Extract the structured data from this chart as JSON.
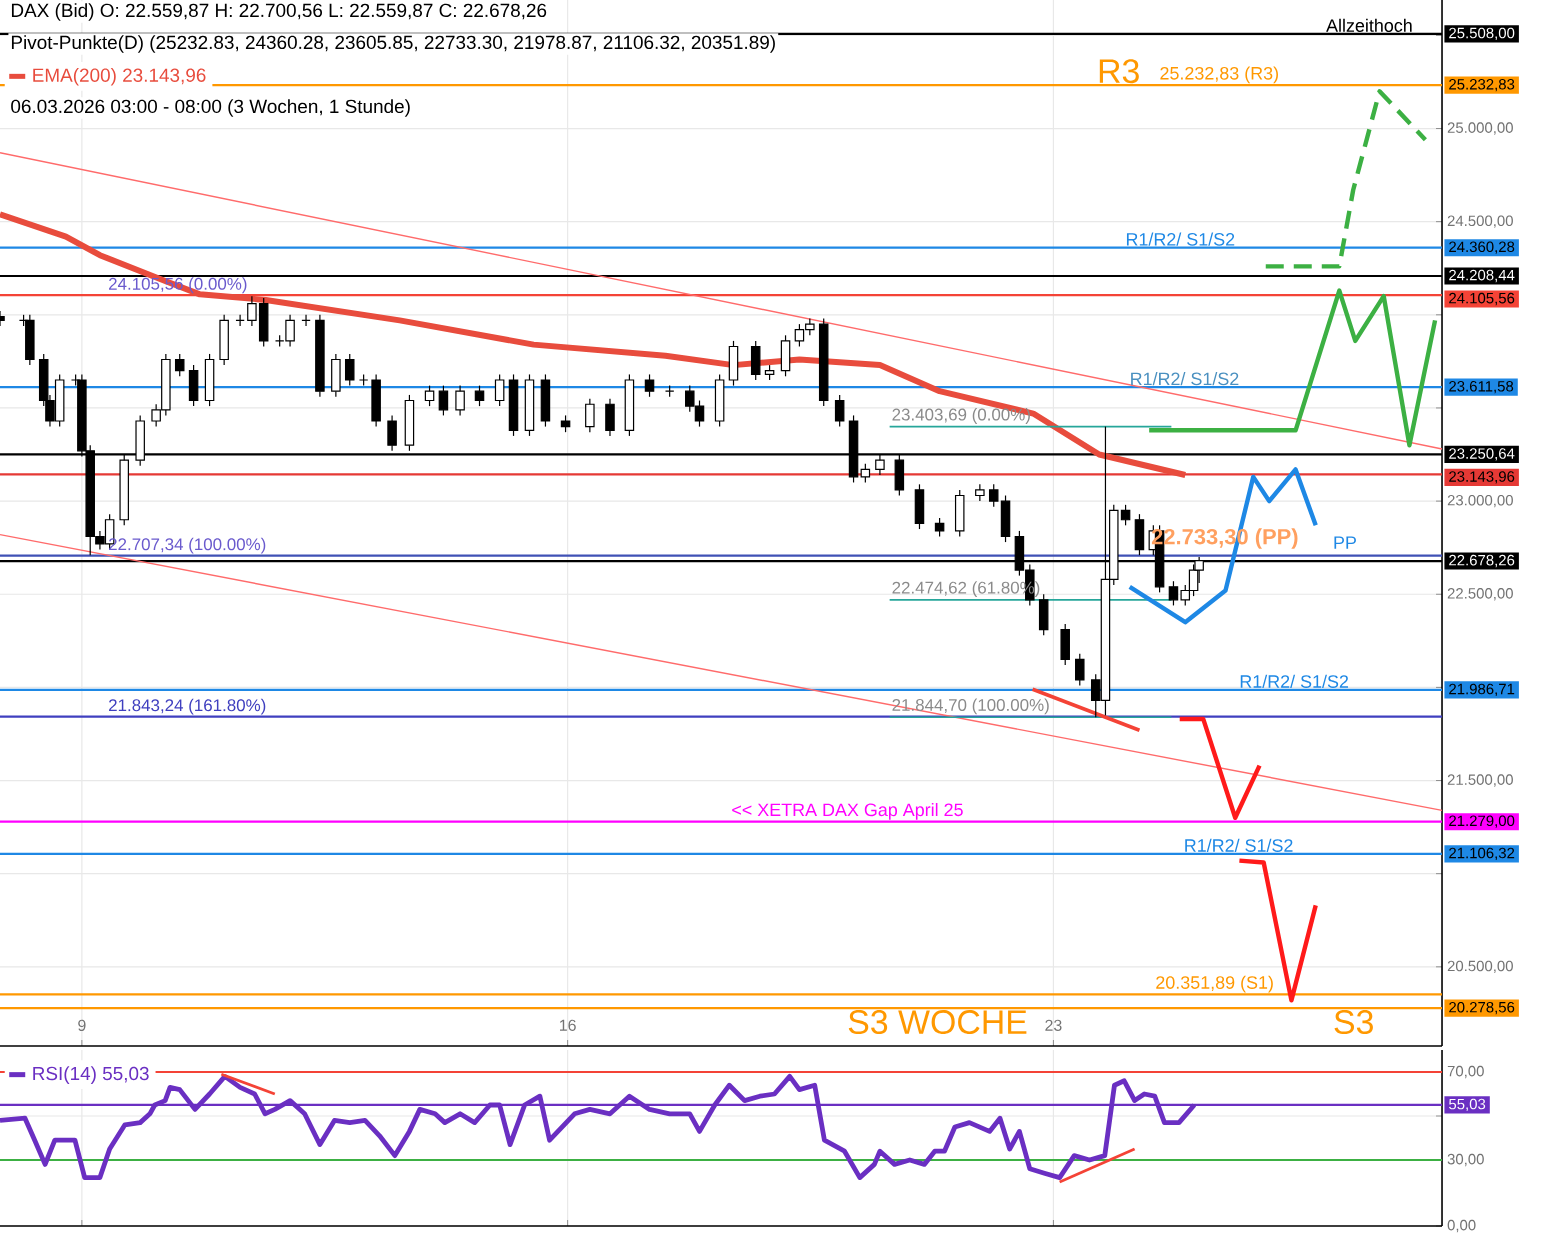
{
  "chart_data": [
    {
      "type": "candlestick",
      "title": "DAX (Bid)  O: 22.559,87  H: 22.700,56  L: 22.559,87  C: 22.678,26",
      "subtitle": "Pivot-Punkte(D)  (25232.83,  24360.28,  23605.85,  22733.30,  21978.87,  21106.32,  20351.89)",
      "color": "#000000",
      "x": [
        7.82,
        8.16,
        8.25,
        8.45,
        8.54,
        8.68,
        8.91,
        9.0,
        9.12,
        9.26,
        9.4,
        9.61,
        9.84,
        10.07,
        10.21,
        10.41,
        10.61,
        10.84,
        11.05,
        11.28,
        11.45,
        11.62,
        11.85,
        12.0,
        12.23,
        12.43,
        12.66,
        12.86,
        13.06,
        13.24,
        13.47,
        13.72,
        14.01,
        14.21,
        14.45,
        14.73,
        15.02,
        15.22,
        15.45,
        15.68,
        15.97,
        16.32,
        16.61,
        16.89,
        17.18,
        17.47,
        17.76,
        17.9,
        18.19,
        18.39,
        18.71,
        18.91,
        19.14,
        19.34,
        19.49,
        19.69,
        19.92,
        20.12,
        20.29,
        20.5,
        20.78,
        21.07,
        21.36,
        21.65,
        21.94,
        22.14,
        22.31,
        22.51,
        22.66,
        22.86,
        23.17,
        23.38,
        23.61,
        23.75,
        23.87,
        24.04,
        24.24,
        24.44,
        24.53,
        24.73,
        24.9,
        25.02,
        25.1
      ],
      "ohlc": [
        [
          23990,
          24020,
          23940,
          23970
        ],
        [
          23970,
          24000,
          23940,
          23970
        ],
        [
          23970,
          24000,
          23730,
          23760
        ],
        [
          23760,
          23790,
          23510,
          23540
        ],
        [
          23540,
          23570,
          23400,
          23430
        ],
        [
          23430,
          23680,
          23400,
          23650
        ],
        [
          23650,
          23680,
          23620,
          23650
        ],
        [
          23650,
          23680,
          23240,
          23270
        ],
        [
          23270,
          23300,
          22710,
          22810
        ],
        [
          22810,
          22840,
          22740,
          22770
        ],
        [
          22770,
          22930,
          22740,
          22900
        ],
        [
          22900,
          23250,
          22870,
          23220
        ],
        [
          23220,
          23460,
          23190,
          23430
        ],
        [
          23430,
          23520,
          23400,
          23490
        ],
        [
          23490,
          23790,
          23460,
          23760
        ],
        [
          23760,
          23790,
          23670,
          23700
        ],
        [
          23700,
          23730,
          23510,
          23540
        ],
        [
          23540,
          23790,
          23510,
          23760
        ],
        [
          23760,
          24000,
          23730,
          23970
        ],
        [
          23970,
          24000,
          23940,
          23970
        ],
        [
          23970,
          24100,
          23940,
          24060
        ],
        [
          24060,
          24090,
          23830,
          23860
        ],
        [
          23860,
          23890,
          23830,
          23860
        ],
        [
          23860,
          24000,
          23830,
          23970
        ],
        [
          23970,
          24000,
          23940,
          23970
        ],
        [
          23970,
          24000,
          23560,
          23590
        ],
        [
          23590,
          23790,
          23560,
          23760
        ],
        [
          23760,
          23790,
          23620,
          23650
        ],
        [
          23650,
          23680,
          23620,
          23650
        ],
        [
          23650,
          23680,
          23400,
          23430
        ],
        [
          23430,
          23460,
          23270,
          23300
        ],
        [
          23300,
          23570,
          23270,
          23540
        ],
        [
          23540,
          23620,
          23510,
          23590
        ],
        [
          23590,
          23620,
          23460,
          23490
        ],
        [
          23490,
          23620,
          23460,
          23590
        ],
        [
          23590,
          23620,
          23510,
          23540
        ],
        [
          23540,
          23680,
          23510,
          23650
        ],
        [
          23650,
          23680,
          23350,
          23380
        ],
        [
          23380,
          23680,
          23350,
          23650
        ],
        [
          23650,
          23680,
          23400,
          23430
        ],
        [
          23430,
          23460,
          23370,
          23400
        ],
        [
          23400,
          23550,
          23370,
          23520
        ],
        [
          23520,
          23550,
          23350,
          23380
        ],
        [
          23380,
          23680,
          23350,
          23650
        ],
        [
          23650,
          23680,
          23560,
          23590
        ],
        [
          23590,
          23620,
          23560,
          23590
        ],
        [
          23590,
          23620,
          23480,
          23510
        ],
        [
          23510,
          23540,
          23400,
          23430
        ],
        [
          23430,
          23680,
          23400,
          23650
        ],
        [
          23650,
          23860,
          23620,
          23830
        ],
        [
          23830,
          23860,
          23650,
          23680
        ],
        [
          23680,
          23730,
          23650,
          23700
        ],
        [
          23700,
          23890,
          23670,
          23860
        ],
        [
          23860,
          23950,
          23830,
          23920
        ],
        [
          23920,
          23980,
          23890,
          23950
        ],
        [
          23950,
          23980,
          23510,
          23540
        ],
        [
          23540,
          23570,
          23400,
          23430
        ],
        [
          23430,
          23460,
          23100,
          23130
        ],
        [
          23130,
          23200,
          23100,
          23170
        ],
        [
          23170,
          23250,
          23140,
          23220
        ],
        [
          23220,
          23250,
          23030,
          23060
        ],
        [
          23060,
          23090,
          22850,
          22880
        ],
        [
          22880,
          22910,
          22810,
          22840
        ],
        [
          22840,
          23060,
          22810,
          23030
        ],
        [
          23030,
          23090,
          23000,
          23060
        ],
        [
          23060,
          23090,
          22970,
          23000
        ],
        [
          23000,
          23030,
          22780,
          22810
        ],
        [
          22810,
          22840,
          22600,
          22630
        ],
        [
          22630,
          22660,
          22440,
          22470
        ],
        [
          22470,
          22500,
          22280,
          22310
        ],
        [
          22310,
          22340,
          22120,
          22150
        ],
        [
          22150,
          22180,
          22010,
          22040
        ],
        [
          22040,
          22070,
          21840,
          21930
        ],
        [
          21930,
          23400,
          21850,
          22580
        ],
        [
          22580,
          22980,
          22550,
          22950
        ],
        [
          22950,
          22980,
          22870,
          22900
        ],
        [
          22900,
          22930,
          22710,
          22740
        ],
        [
          22740,
          22870,
          22710,
          22840
        ],
        [
          22840,
          22870,
          22510,
          22540
        ],
        [
          22540,
          22570,
          22440,
          22470
        ],
        [
          22470,
          22550,
          22440,
          22520
        ],
        [
          22520,
          22660,
          22490,
          22630
        ],
        [
          22630,
          22700,
          22560,
          22680
        ]
      ],
      "series": [
        {
          "name": "EMA(200)  23.143,96",
          "type": "line",
          "color": "#e84c3d",
          "x": [
            7.82,
            8.77,
            9.26,
            10.21,
            10.7,
            11.65,
            13.58,
            15.51,
            17.41,
            18.39,
            19.34,
            20.5,
            21.36,
            22.71,
            23.66,
            24.9
          ],
          "values": [
            24540,
            24420,
            24320,
            24180,
            24110,
            24080,
            23970,
            23840,
            23780,
            23730,
            23760,
            23730,
            23590,
            23470,
            23250,
            23140
          ]
        },
        {
          "type": "line",
          "color": "#ff6b6b",
          "x": [
            7.82,
            28.6
          ],
          "values": [
            24870,
            23280
          ]
        },
        {
          "type": "line",
          "color": "#ff6b6b",
          "x": [
            7.82,
            28.6
          ],
          "values": [
            22820,
            21340
          ]
        },
        {
          "type": "line",
          "color": "#26a69a",
          "x": [
            20.64,
            24.7
          ],
          "values": [
            23400,
            23400
          ]
        },
        {
          "type": "line",
          "color": "#26a69a",
          "x": [
            20.64,
            24.7
          ],
          "values": [
            22470,
            22470
          ]
        },
        {
          "type": "line",
          "color": "#26a69a",
          "x": [
            20.64,
            24.7
          ],
          "values": [
            21840,
            21840
          ]
        },
        {
          "type": "line",
          "color": "#3cb043",
          "x": [
            24.38,
            26.49,
            27.12,
            27.35,
            27.76,
            28.13,
            28.5
          ],
          "values": [
            23380,
            23380,
            24130,
            23860,
            24100,
            23300,
            23970
          ]
        },
        {
          "type": "line",
          "color": "#3cb043",
          "line_style": "dashed",
          "x": [
            26.06,
            27.12,
            27.32,
            27.7,
            28.36
          ],
          "values": [
            24260,
            24260,
            24670,
            25200,
            24940
          ]
        },
        {
          "type": "line",
          "color": "#1e88e5",
          "x": [
            24.1,
            24.9,
            25.48,
            25.88,
            26.11,
            26.49,
            26.78
          ],
          "values": [
            22540,
            22350,
            22520,
            23130,
            23000,
            23170,
            22870
          ]
        },
        {
          "type": "line",
          "color": "#ff1a1a",
          "x": [
            24.82,
            25.16,
            25.62,
            25.97
          ],
          "values": [
            21830,
            21830,
            21300,
            21580
          ]
        },
        {
          "type": "line",
          "color": "#ff1a1a",
          "x": [
            25.68,
            26.03,
            26.43,
            26.78
          ],
          "values": [
            21070,
            21060,
            20320,
            20830
          ]
        },
        {
          "type": "line",
          "color": "#f44336",
          "x": [
            22.7,
            24.24
          ],
          "values": [
            21990,
            21770
          ]
        }
      ],
      "xlim": [
        7.82,
        28.6
      ],
      "xticks": [
        9,
        16,
        23
      ],
      "ylim": [
        20075,
        25690
      ],
      "yticks": [
        {
          "value": 20500,
          "label": "20.500,00"
        },
        {
          "value": 21000,
          "label": null
        },
        {
          "value": 21500,
          "label": "21.500,00"
        },
        {
          "value": 22000,
          "label": null
        },
        {
          "value": 22500,
          "label": "22.500,00"
        },
        {
          "value": 23000,
          "label": "23.000,00"
        },
        {
          "value": 23500,
          "label": null
        },
        {
          "value": 24000,
          "label": null
        },
        {
          "value": 24500,
          "label": "24.500,00"
        },
        {
          "value": 25000,
          "label": "25.000,00"
        },
        {
          "value": 25500,
          "label": null
        }
      ],
      "grid": true,
      "legend": "top left",
      "ref_lines": [
        {
          "axis": "y",
          "value": 25508,
          "label": "25.508,00",
          "color": "#000000"
        },
        {
          "axis": "y",
          "value": 25232.83,
          "label": "25.232,83",
          "color": "#ff9800"
        },
        {
          "axis": "y",
          "value": 24360.28,
          "label": "24.360,28",
          "color": "#1e88e5"
        },
        {
          "axis": "y",
          "value": 24208.44,
          "label": "24.208,44",
          "color": "#000000"
        },
        {
          "axis": "y",
          "value": 24105.56,
          "label": "24.105,56",
          "color": "#f44336"
        },
        {
          "axis": "y",
          "value": 23611.58,
          "label": "23.611,58",
          "color": "#1e88e5"
        },
        {
          "axis": "y",
          "value": 23250.64,
          "label": "23.250,64",
          "color": "#000000"
        },
        {
          "axis": "y",
          "value": 23143.96,
          "label": "23.143,96",
          "color": "#e53935"
        },
        {
          "axis": "y",
          "value": 22707.34,
          "label": null,
          "color": "#3f51b5"
        },
        {
          "axis": "y",
          "value": 22678.26,
          "label": "22.678,26",
          "color": "#000000"
        },
        {
          "axis": "y",
          "value": 21986.71,
          "label": "21.986,71",
          "color": "#1e88e5"
        },
        {
          "axis": "y",
          "value": 21843.24,
          "label": null,
          "color": "#3f3fbf"
        },
        {
          "axis": "y",
          "value": 21279,
          "label": "21.279,00",
          "color": "#ff00ff"
        },
        {
          "axis": "y",
          "value": 21106.32,
          "label": "21.106,32",
          "color": "#1e88e5"
        },
        {
          "axis": "y",
          "value": 20351.89,
          "label": null,
          "color": "#ff9800"
        },
        {
          "axis": "y",
          "value": 20278.56,
          "label": "20.278,56",
          "color": "#ff9800"
        }
      ],
      "annotations": [
        {
          "text": "Allzeithoch",
          "x": 26.9,
          "y": 25508
        },
        {
          "text": "R3",
          "x": 23.6,
          "y": 25232.83
        },
        {
          "text": "25.232,83 (R3)",
          "x": 24.5,
          "y": 25232.83
        },
        {
          "text": "R1/R2/ S1/S2",
          "x": 24.01,
          "y": 24360.28
        },
        {
          "text": "24.105,56 (0.00%)",
          "x": 9.35,
          "y": 24105.56
        },
        {
          "text": "R1/R2/ S1/S2",
          "x": 24.07,
          "y": 23611.58
        },
        {
          "text": "23.403,69 (0.00%)",
          "x": 20.64,
          "y": 23403.69
        },
        {
          "text": "22.707,34 (100.00%)",
          "x": 9.35,
          "y": 22707.34
        },
        {
          "text": "22.733,30 (PP)",
          "x": 24.38,
          "y": 22733.3
        },
        {
          "text": "PP",
          "x": 27.0,
          "y": 22733.3
        },
        {
          "text": "22.474,62 (61.80%)",
          "x": 20.64,
          "y": 22474.62
        },
        {
          "text": "R1/R2/ S1/S2",
          "x": 25.65,
          "y": 21986.71
        },
        {
          "text": "21.843,24 (161.80%)",
          "x": 9.35,
          "y": 21843.24
        },
        {
          "text": "21.844,70 (100.00%)",
          "x": 20.64,
          "y": 21844.7
        },
        {
          "text": "<< XETRA DAX Gap April 25",
          "x": 18.33,
          "y": 21279
        },
        {
          "text": "R1/R2/ S1/S2",
          "x": 24.85,
          "y": 21106.32
        },
        {
          "text": "20.351,89 (S1)",
          "x": 24.44,
          "y": 20351.89
        },
        {
          "text": "S3 WOCHE",
          "x": 20.0,
          "y": 20278.56
        },
        {
          "text": "S3",
          "x": 27.0,
          "y": 20278.56
        },
        "06.03.2026 03:00 - 08:00  (3 Wochen, 1 Stunde)"
      ]
    },
    {
      "type": "line",
      "series": [
        {
          "name": "RSI(14)  55,03",
          "color": "#6a2fc2",
          "x": [
            7.82,
            8.18,
            8.32,
            8.47,
            8.61,
            8.9,
            9.04,
            9.26,
            9.4,
            9.62,
            9.84,
            9.98,
            10.05,
            10.2,
            10.27,
            10.41,
            10.63,
            10.84,
            11.06,
            11.28,
            11.49,
            11.64,
            11.78,
            12.0,
            12.21,
            12.43,
            12.64,
            12.86,
            13.08,
            13.29,
            13.51,
            13.72,
            13.87,
            14.09,
            14.23,
            14.45,
            14.66,
            14.88,
            15.02,
            15.17,
            15.38,
            15.6,
            15.74,
            16.1,
            16.32,
            16.61,
            16.89,
            17.18,
            17.47,
            17.76,
            17.9,
            18.12,
            18.33,
            18.55,
            18.77,
            18.98,
            19.2,
            19.34,
            19.56,
            19.7,
            19.99,
            20.21,
            20.42,
            20.5,
            20.71,
            20.93,
            21.14,
            21.29,
            21.43,
            21.58,
            21.79,
            22.08,
            22.23,
            22.37,
            22.51,
            22.66,
            22.87,
            23.09,
            23.3,
            23.52,
            23.74,
            23.88,
            24.02,
            24.17,
            24.31,
            24.46,
            24.6,
            24.81,
            25.03
          ],
          "values": [
            48,
            49,
            39,
            28,
            39,
            39,
            22,
            22,
            35,
            46,
            47,
            51,
            55,
            57,
            63,
            62,
            53,
            60,
            68,
            63,
            60,
            51,
            53,
            57,
            51,
            37,
            48,
            47,
            48,
            41,
            32,
            43,
            53,
            51,
            47,
            51,
            47,
            55,
            55,
            37,
            55,
            59,
            39,
            51,
            53,
            51,
            59,
            53,
            51,
            51,
            43,
            55,
            64,
            57,
            59,
            60,
            68,
            62,
            64,
            39,
            34,
            22,
            28,
            34,
            28,
            30,
            28,
            34,
            34,
            45,
            47,
            43,
            49,
            35,
            43,
            26,
            24,
            22,
            32,
            30,
            32,
            64,
            66,
            57,
            60,
            59,
            47,
            47,
            55
          ]
        },
        {
          "color": "#f44336",
          "x": [
            11.01,
            11.78
          ],
          "values": [
            69,
            60
          ]
        },
        {
          "color": "#f44336",
          "x": [
            23.09,
            24.17
          ],
          "values": [
            20,
            35
          ]
        }
      ],
      "xlim": [
        7.82,
        28.6
      ],
      "xticks": [
        9,
        16,
        23
      ],
      "ylim": [
        0,
        80
      ],
      "yticks": [
        {
          "value": 0,
          "label": "0,00"
        },
        {
          "value": 30,
          "label": "30,00"
        },
        {
          "value": 50,
          "label": null
        },
        {
          "value": 70,
          "label": "70,00"
        }
      ],
      "tick_labels": "y",
      "grid": true,
      "legend": "top left",
      "ref_lines": [
        {
          "axis": "y",
          "value": 70,
          "label": null,
          "color": "#f44336"
        },
        {
          "axis": "y",
          "value": 55.03,
          "label": "55,03",
          "color": "#6a2fc2"
        },
        {
          "axis": "y",
          "value": 30,
          "label": null,
          "color": "#3cb043"
        }
      ]
    }
  ]
}
